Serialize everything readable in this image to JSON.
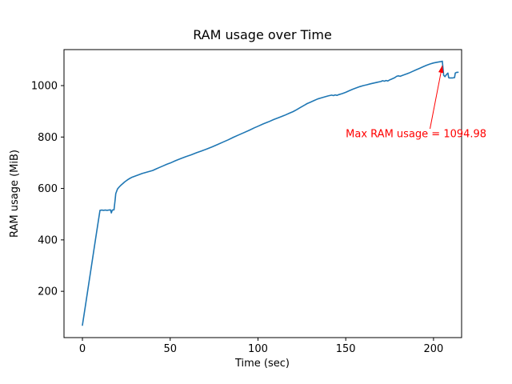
{
  "figure": {
    "background": "#ffffff"
  },
  "chart_data": {
    "type": "line",
    "title": "RAM usage over Time",
    "xlabel": "Time (sec)",
    "ylabel": "RAM usage (MiB)",
    "xlim": [
      -10.5,
      216
    ],
    "ylim": [
      20,
      1140
    ],
    "xticks": [
      0,
      50,
      100,
      150,
      200
    ],
    "yticks": [
      200,
      400,
      600,
      800,
      1000
    ],
    "grid": false,
    "legend": "none",
    "line_color": "#1f77b4",
    "spine_color": "#000000",
    "max_value": 1094.98,
    "annotation": {
      "text": "Max RAM usage = 1094.98",
      "color": "#ff0000",
      "text_x": 150,
      "text_y": 800,
      "arrow_from_x": 198,
      "arrow_from_y": 832,
      "arrow_to_x": 205,
      "arrow_to_y": 1078
    },
    "series": [
      {
        "name": "RAM usage",
        "points": [
          [
            0,
            68
          ],
          [
            1,
            112
          ],
          [
            2,
            157
          ],
          [
            3,
            202
          ],
          [
            4,
            247
          ],
          [
            5,
            292
          ],
          [
            6,
            337
          ],
          [
            7,
            382
          ],
          [
            8,
            427
          ],
          [
            9,
            471
          ],
          [
            10,
            515
          ],
          [
            11,
            516
          ],
          [
            12,
            515
          ],
          [
            13,
            516
          ],
          [
            14,
            515
          ],
          [
            15,
            516
          ],
          [
            16,
            517
          ],
          [
            16.5,
            505
          ],
          [
            17,
            516
          ],
          [
            18,
            517
          ],
          [
            18.6,
            555
          ],
          [
            19,
            580
          ],
          [
            20,
            598
          ],
          [
            21,
            606
          ],
          [
            22,
            613
          ],
          [
            23,
            619
          ],
          [
            24,
            625
          ],
          [
            25,
            630
          ],
          [
            26,
            635
          ],
          [
            27,
            639
          ],
          [
            28,
            643
          ],
          [
            30,
            648
          ],
          [
            32,
            653
          ],
          [
            34,
            658
          ],
          [
            36,
            662
          ],
          [
            38,
            666
          ],
          [
            40,
            670
          ],
          [
            42,
            676
          ],
          [
            44,
            682
          ],
          [
            46,
            688
          ],
          [
            48,
            694
          ],
          [
            50,
            699
          ],
          [
            53,
            708
          ],
          [
            56,
            716
          ],
          [
            59,
            724
          ],
          [
            62,
            731
          ],
          [
            65,
            739
          ],
          [
            68,
            746
          ],
          [
            71,
            754
          ],
          [
            74,
            762
          ],
          [
            77,
            771
          ],
          [
            80,
            780
          ],
          [
            83,
            789
          ],
          [
            86,
            799
          ],
          [
            89,
            808
          ],
          [
            92,
            817
          ],
          [
            95,
            826
          ],
          [
            98,
            836
          ],
          [
            100,
            842
          ],
          [
            103,
            851
          ],
          [
            106,
            859
          ],
          [
            109,
            868
          ],
          [
            112,
            876
          ],
          [
            115,
            884
          ],
          [
            118,
            893
          ],
          [
            120,
            899
          ],
          [
            122,
            906
          ],
          [
            124,
            914
          ],
          [
            126,
            922
          ],
          [
            128,
            930
          ],
          [
            130,
            936
          ],
          [
            132,
            942
          ],
          [
            134,
            948
          ],
          [
            136,
            952
          ],
          [
            138,
            956
          ],
          [
            140,
            960
          ],
          [
            142,
            963
          ],
          [
            143,
            961
          ],
          [
            144,
            964
          ],
          [
            145,
            962
          ],
          [
            146,
            965
          ],
          [
            148,
            969
          ],
          [
            150,
            974
          ],
          [
            152,
            980
          ],
          [
            154,
            986
          ],
          [
            156,
            991
          ],
          [
            158,
            996
          ],
          [
            160,
            1000
          ],
          [
            162,
            1003
          ],
          [
            164,
            1007
          ],
          [
            166,
            1010
          ],
          [
            168,
            1013
          ],
          [
            170,
            1016
          ],
          [
            171,
            1019
          ],
          [
            172,
            1017
          ],
          [
            173,
            1020
          ],
          [
            174,
            1018
          ],
          [
            175,
            1022
          ],
          [
            176,
            1025
          ],
          [
            177,
            1028
          ],
          [
            178,
            1031
          ],
          [
            179,
            1036
          ],
          [
            180,
            1038
          ],
          [
            181,
            1036
          ],
          [
            182,
            1039
          ],
          [
            184,
            1044
          ],
          [
            186,
            1049
          ],
          [
            188,
            1055
          ],
          [
            190,
            1061
          ],
          [
            192,
            1067
          ],
          [
            194,
            1073
          ],
          [
            196,
            1079
          ],
          [
            198,
            1084
          ],
          [
            200,
            1088
          ],
          [
            202,
            1091
          ],
          [
            204,
            1093
          ],
          [
            205,
            1094.98
          ],
          [
            205.8,
            1040
          ],
          [
            206.5,
            1035
          ],
          [
            207.5,
            1044
          ],
          [
            208.2,
            1049
          ],
          [
            208.6,
            1031
          ],
          [
            209,
            1030
          ],
          [
            211,
            1030
          ],
          [
            212,
            1031
          ],
          [
            212.4,
            1049
          ],
          [
            213,
            1051
          ],
          [
            214,
            1052
          ]
        ]
      }
    ]
  }
}
